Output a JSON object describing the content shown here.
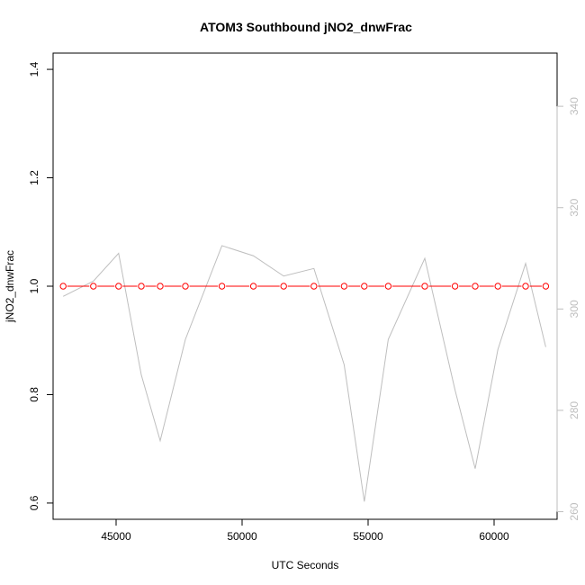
{
  "chart_data": {
    "type": "line",
    "title": "ATOM3 Southbound jNO2_dnwFrac",
    "xlabel": "UTC Seconds",
    "ylabel": "jNO2_dnwFrac",
    "xlim": [
      42500,
      62500
    ],
    "ylim": [
      0.57,
      1.43
    ],
    "y2lim": [
      258.5,
      350.5
    ],
    "x_ticks": [
      45000,
      50000,
      55000,
      60000
    ],
    "y_ticks": [
      0.6,
      0.8,
      1.0,
      1.2,
      1.4
    ],
    "y_tick_labels": [
      "0.6",
      "0.8",
      "1.0",
      "1.2",
      "1.4"
    ],
    "y2_ticks": [
      260,
      280,
      300,
      320,
      340
    ],
    "grid": false,
    "legend": "none",
    "series": [
      {
        "axis": "left",
        "color": "#ff0000",
        "marker": "open-circle",
        "x": [
          42900,
          44100,
          45100,
          46000,
          46750,
          47750,
          49200,
          50450,
          51650,
          52850,
          54050,
          54850,
          55800,
          57250,
          58450,
          59250,
          60150,
          61250,
          62050
        ],
        "y": [
          1.0,
          1.0,
          1.0,
          1.0,
          1.0,
          1.0,
          1.0,
          1.0,
          1.0,
          1.0,
          1.0,
          1.0,
          1.0,
          1.0,
          1.0,
          1.0,
          1.0,
          1.0,
          1.0
        ]
      },
      {
        "axis": "right",
        "color": "#bebebe",
        "marker": "none",
        "x": [
          42900,
          44100,
          45100,
          46000,
          46750,
          47750,
          49200,
          50450,
          51650,
          52850,
          54050,
          54850,
          55800,
          57250,
          58450,
          59250,
          60150,
          61250,
          62050
        ],
        "y": [
          302.5,
          305.5,
          311,
          287,
          274,
          294,
          312.5,
          310.5,
          306.5,
          308,
          289,
          262,
          294,
          310,
          284,
          268.5,
          292,
          309,
          292.5
        ]
      }
    ]
  }
}
